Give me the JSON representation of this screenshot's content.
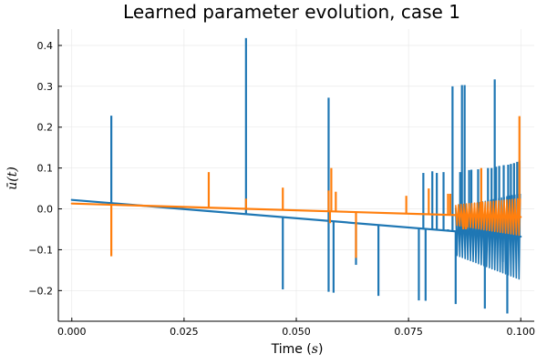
{
  "chart_data": {
    "type": "line",
    "title": "Learned parameter evolution, case 1",
    "xlabel": "Time (s)",
    "ylabel": "ū(t)",
    "xlim": [
      -0.003,
      0.103
    ],
    "ylim": [
      -0.275,
      0.44
    ],
    "x_ticks": [
      {
        "value": 0.0,
        "label": "0.000"
      },
      {
        "value": 0.025,
        "label": "0.025"
      },
      {
        "value": 0.05,
        "label": "0.050"
      },
      {
        "value": 0.075,
        "label": "0.075"
      },
      {
        "value": 0.1,
        "label": "0.100"
      }
    ],
    "y_ticks": [
      {
        "value": -0.2,
        "label": "−0.2"
      },
      {
        "value": -0.1,
        "label": "−0.1"
      },
      {
        "value": 0.0,
        "label": "0.0"
      },
      {
        "value": 0.1,
        "label": "0.1"
      },
      {
        "value": 0.2,
        "label": "0.2"
      },
      {
        "value": 0.3,
        "label": "0.3"
      },
      {
        "value": 0.4,
        "label": "0.4"
      }
    ],
    "grid": true,
    "legend": "none",
    "series": [
      {
        "color": "#1f77b4",
        "baseline": [
          [
            0.0,
            0.022
          ],
          [
            0.1,
            -0.068
          ]
        ],
        "spikes": [
          [
            0.0088,
            0.228
          ],
          [
            0.0388,
            0.418
          ],
          [
            0.047,
            -0.197
          ],
          [
            0.0572,
            0.272
          ],
          [
            0.0572,
            -0.203
          ],
          [
            0.0583,
            -0.205
          ],
          [
            0.0633,
            -0.137
          ],
          [
            0.0683,
            -0.213
          ],
          [
            0.0773,
            -0.224
          ],
          [
            0.0783,
            0.088
          ],
          [
            0.0788,
            -0.225
          ],
          [
            0.0803,
            0.092
          ],
          [
            0.0813,
            0.088
          ],
          [
            0.0828,
            0.09
          ],
          [
            0.0838,
            -0.05
          ],
          [
            0.0848,
            0.3
          ],
          [
            0.0855,
            -0.233
          ],
          [
            0.0865,
            0.09
          ],
          [
            0.0869,
            0.303
          ],
          [
            0.0875,
            0.303
          ],
          [
            0.0885,
            0.095
          ],
          [
            0.089,
            0.096
          ],
          [
            0.0905,
            0.097
          ],
          [
            0.0912,
            0.098
          ],
          [
            0.092,
            -0.244
          ],
          [
            0.0927,
            0.1
          ],
          [
            0.0935,
            0.1
          ],
          [
            0.0942,
            0.317
          ],
          [
            0.0945,
            0.103
          ],
          [
            0.0952,
            0.105
          ],
          [
            0.096,
            -0.13
          ],
          [
            0.0962,
            0.107
          ],
          [
            0.097,
            -0.256
          ],
          [
            0.0972,
            0.108
          ],
          [
            0.0978,
            0.11
          ],
          [
            0.0985,
            0.112
          ],
          [
            0.0992,
            0.115
          ],
          [
            0.0997,
            0.118
          ]
        ],
        "oscillation": {
          "start": 0.0855,
          "end": 0.1,
          "period": 0.0006,
          "amplitude": 0.105
        }
      },
      {
        "color": "#ff7f0e",
        "baseline": [
          [
            0.0,
            0.013
          ],
          [
            0.1,
            -0.02
          ]
        ],
        "spikes": [
          [
            0.0088,
            -0.116
          ],
          [
            0.0305,
            0.09
          ],
          [
            0.0388,
            0.025
          ],
          [
            0.047,
            0.052
          ],
          [
            0.0572,
            0.045
          ],
          [
            0.0575,
            -0.035
          ],
          [
            0.0578,
            0.1
          ],
          [
            0.0588,
            0.042
          ],
          [
            0.0633,
            -0.12
          ],
          [
            0.0745,
            0.032
          ],
          [
            0.0795,
            0.05
          ],
          [
            0.0838,
            0.037
          ],
          [
            0.0843,
            0.037
          ],
          [
            0.0872,
            -0.05
          ],
          [
            0.0878,
            -0.05
          ],
          [
            0.0912,
            0.1
          ],
          [
            0.0997,
            0.227
          ]
        ],
        "oscillation": {
          "start": 0.0855,
          "end": 0.1,
          "period": 0.0006,
          "amplitude": 0.045
        }
      }
    ]
  }
}
